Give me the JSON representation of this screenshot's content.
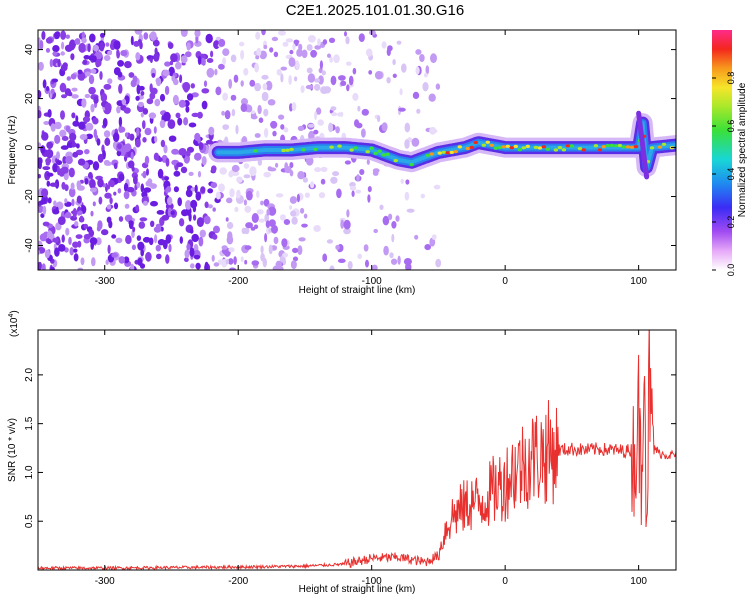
{
  "title": "C2E1.2025.101.01.30.G16",
  "colors": {
    "snr_line": "#e8312f",
    "spectrum_noise": "#7b2fe0",
    "spectrum_noise_light": "#d9c4f6",
    "track_core": "#2aa8e8",
    "track_peak": "#ff2a2a"
  },
  "chart_data": [
    {
      "type": "heatmap",
      "name": "spectrogram",
      "xlabel": "Height of straight line (km)",
      "ylabel": "Frequency (Hz)",
      "xlim": [
        -350,
        128
      ],
      "ylim": [
        -50,
        48
      ],
      "xticks": [
        -300,
        -200,
        -100,
        0,
        100
      ],
      "yticks": [
        -40,
        -20,
        0,
        20,
        40
      ],
      "colorbar": {
        "label": "Normalized spectral amplitude",
        "range": [
          0,
          1
        ],
        "ticks": [
          0.0,
          0.2,
          0.4,
          0.6,
          0.8
        ],
        "colormap": "rainbow"
      },
      "signal_track": {
        "x": [
          -215,
          -200,
          -180,
          -160,
          -140,
          -120,
          -100,
          -90,
          -80,
          -70,
          -60,
          -50,
          -40,
          -30,
          -20,
          -10,
          0,
          20,
          40,
          60,
          80,
          100,
          103,
          106,
          110,
          128
        ],
        "y": [
          -2,
          -2,
          -1,
          -1,
          0,
          0,
          -1,
          -3,
          -5,
          -6,
          -4,
          -2,
          -1,
          0,
          2,
          1,
          0,
          0,
          0,
          0,
          0,
          0,
          10,
          -8,
          0,
          1
        ]
      },
      "noise_region_x": [
        -350,
        -50
      ]
    },
    {
      "type": "line",
      "name": "snr",
      "xlabel": "Height of straight line (km)",
      "ylabel": "SNR (10 * v/v)",
      "multiplier_label": "(x10",
      "multiplier_exponent": "4",
      "multiplier_close": ")",
      "xlim": [
        -350,
        128
      ],
      "ylim": [
        0,
        24600
      ],
      "xticks": [
        -300,
        -200,
        -100,
        0,
        100
      ],
      "yticks": [
        5000,
        10000,
        15000,
        20000
      ],
      "ytick_labels": [
        "0.5",
        "1.0",
        "1.5",
        "2.0"
      ],
      "series": [
        {
          "x": [
            -350,
            -300,
            -250,
            -200,
            -150,
            -120,
            -100,
            -80,
            -60,
            -50,
            -45,
            -40,
            -35,
            -30,
            -25,
            -20,
            -15,
            -10,
            -5,
            0,
            5,
            10,
            20,
            30,
            40,
            50,
            60,
            70,
            80,
            90,
            98,
            100,
            102,
            104,
            106,
            108,
            110,
            115,
            120,
            128
          ],
          "y": [
            200,
            200,
            250,
            300,
            400,
            600,
            1200,
            1300,
            800,
            1500,
            4000,
            5500,
            6000,
            6500,
            7000,
            6800,
            7300,
            8000,
            8500,
            9000,
            10000,
            10500,
            11500,
            12000,
            12300,
            12400,
            12300,
            12400,
            12300,
            12200,
            12400,
            16000,
            9000,
            25000,
            6000,
            20000,
            13000,
            12000,
            11800,
            11800
          ]
        }
      ]
    }
  ]
}
